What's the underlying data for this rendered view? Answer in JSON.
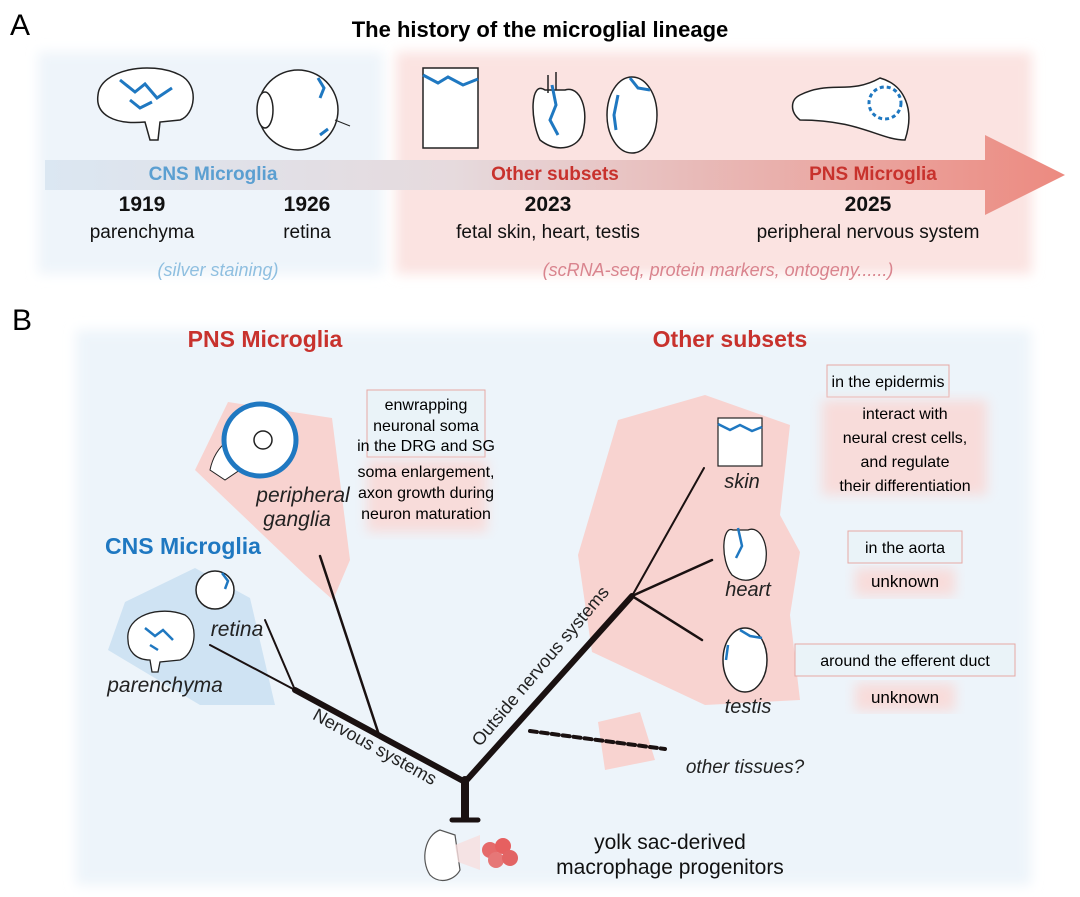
{
  "panel_a": {
    "letter": "A",
    "title": "The history of the microglial lineage",
    "groups": [
      {
        "name": "CNS Microglia",
        "color": "#5b9fd1"
      },
      {
        "name": "Other subsets",
        "color": "#c8322d"
      },
      {
        "name": "PNS Microglia",
        "color": "#c8322d"
      }
    ],
    "milestones": [
      {
        "year": "1919",
        "site": "parenchyma"
      },
      {
        "year": "1926",
        "site": "retina"
      },
      {
        "year": "2023",
        "site": "fetal skin, heart, testis"
      },
      {
        "year": "2025",
        "site": "peripheral nervous system"
      }
    ],
    "methods": [
      {
        "text": "(silver staining)",
        "color": "#8fbfe0"
      },
      {
        "text": "(scRNA-seq, protein markers, ontogeny......)",
        "color": "#d9848e"
      }
    ]
  },
  "panel_b": {
    "letter": "B",
    "pns": {
      "title": "PNS Microglia",
      "tissue": [
        "peripheral",
        "ganglia"
      ],
      "location_box": [
        "enwrapping",
        "neuronal soma",
        "in the DRG and SG"
      ],
      "function": [
        "soma enlargement,",
        "axon growth during",
        "neuron maturation"
      ]
    },
    "cns": {
      "title": "CNS Microglia",
      "tissues": [
        "retina",
        "parenchyma"
      ]
    },
    "other": {
      "title": "Other subsets",
      "tissues": [
        {
          "name": "skin",
          "location": "in the epidermis",
          "function": [
            "interact with",
            "neural crest cells,",
            "and regulate",
            "their differentiation"
          ]
        },
        {
          "name": "heart",
          "location": "in the aorta",
          "function": [
            "unknown"
          ]
        },
        {
          "name": "testis",
          "location": "around the efferent duct",
          "function": [
            "unknown"
          ]
        }
      ],
      "other_tissues": "other tissues?"
    },
    "branches": {
      "left": "Nervous systems",
      "right": "Outside nervous systems"
    },
    "origin": [
      "yolk sac-derived",
      "macrophage progenitors"
    ],
    "colors": {
      "pink_region": "#f8d3d0",
      "blue_region": "#cfe3f3",
      "background": "#edf4fa",
      "microglia": "#1f78c1"
    }
  }
}
